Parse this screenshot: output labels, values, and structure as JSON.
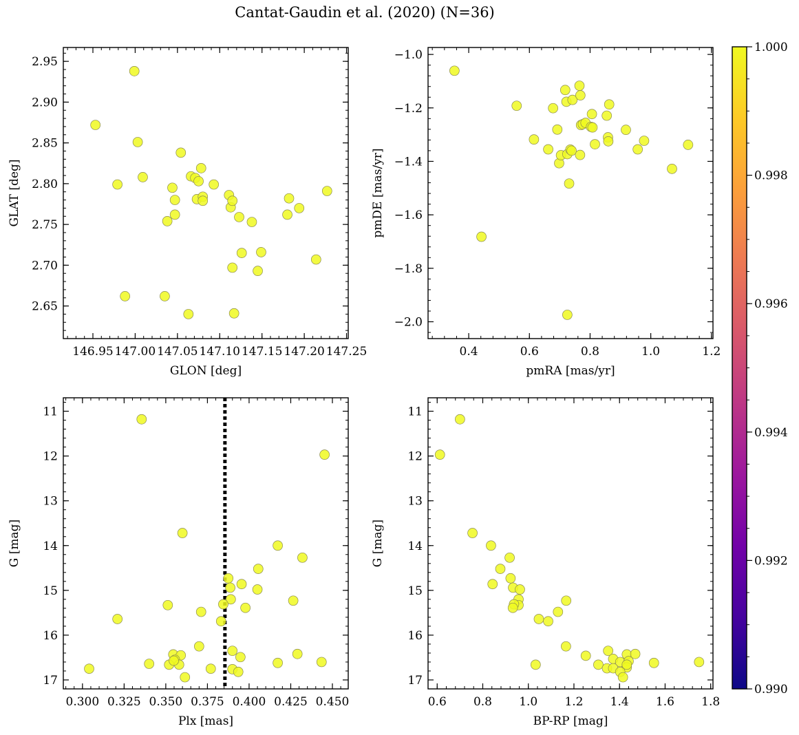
{
  "title": "Cantat-Gaudin et al. (2020) (N=36)",
  "chart_data": [
    {
      "type": "scatter",
      "panel": "top-left",
      "xlabel": "GLON [deg]",
      "ylabel": "GLAT [deg]",
      "xlim": [
        146.915,
        147.252
      ],
      "ylim": [
        2.61,
        2.967
      ],
      "xticks": [
        146.95,
        147.0,
        147.05,
        147.1,
        147.15,
        147.2,
        147.25
      ],
      "xtick_labels": [
        "146.95",
        "147.00",
        "147.05",
        "147.10",
        "147.15",
        "147.20",
        "147.25"
      ],
      "yticks": [
        2.65,
        2.7,
        2.75,
        2.8,
        2.85,
        2.9,
        2.95
      ],
      "ytick_labels": [
        "2.65",
        "2.70",
        "2.75",
        "2.80",
        "2.85",
        "2.90",
        "2.95"
      ],
      "marker_color": "#f0f921",
      "points": [
        {
          "x": 146.953,
          "y": 2.872
        },
        {
          "x": 146.979,
          "y": 2.799
        },
        {
          "x": 146.999,
          "y": 2.938
        },
        {
          "x": 147.003,
          "y": 2.851
        },
        {
          "x": 147.009,
          "y": 2.808
        },
        {
          "x": 146.988,
          "y": 2.662
        },
        {
          "x": 147.035,
          "y": 2.662
        },
        {
          "x": 147.038,
          "y": 2.754
        },
        {
          "x": 147.044,
          "y": 2.795
        },
        {
          "x": 147.047,
          "y": 2.78
        },
        {
          "x": 147.047,
          "y": 2.762
        },
        {
          "x": 147.054,
          "y": 2.838
        },
        {
          "x": 147.063,
          "y": 2.64
        },
        {
          "x": 147.066,
          "y": 2.809
        },
        {
          "x": 147.071,
          "y": 2.807
        },
        {
          "x": 147.075,
          "y": 2.803
        },
        {
          "x": 147.073,
          "y": 2.781
        },
        {
          "x": 147.078,
          "y": 2.819
        },
        {
          "x": 147.08,
          "y": 2.784
        },
        {
          "x": 147.08,
          "y": 2.779
        },
        {
          "x": 147.093,
          "y": 2.799
        },
        {
          "x": 147.111,
          "y": 2.786
        },
        {
          "x": 147.113,
          "y": 2.771
        },
        {
          "x": 147.115,
          "y": 2.779
        },
        {
          "x": 147.115,
          "y": 2.697
        },
        {
          "x": 147.117,
          "y": 2.641
        },
        {
          "x": 147.123,
          "y": 2.759
        },
        {
          "x": 147.126,
          "y": 2.715
        },
        {
          "x": 147.138,
          "y": 2.753
        },
        {
          "x": 147.145,
          "y": 2.693
        },
        {
          "x": 147.149,
          "y": 2.716
        },
        {
          "x": 147.18,
          "y": 2.762
        },
        {
          "x": 147.182,
          "y": 2.782
        },
        {
          "x": 147.194,
          "y": 2.77
        },
        {
          "x": 147.214,
          "y": 2.707
        },
        {
          "x": 147.227,
          "y": 2.791
        }
      ]
    },
    {
      "type": "scatter",
      "panel": "top-right",
      "xlabel": "pmRA [mas/yr]",
      "ylabel": "pmDE [mas/yr]",
      "xlim": [
        0.266,
        1.205
      ],
      "ylim": [
        -2.063,
        -0.974
      ],
      "xticks": [
        0.4,
        0.6,
        0.8,
        1.0,
        1.2
      ],
      "xtick_labels": [
        "0.4",
        "0.6",
        "0.8",
        "1.0",
        "1.2"
      ],
      "yticks": [
        -2.0,
        -1.8,
        -1.6,
        -1.4,
        -1.2,
        -1.0
      ],
      "ytick_labels": [
        "−2.0",
        "−1.8",
        "−1.6",
        "−1.4",
        "−1.2",
        "−1.0"
      ],
      "marker_color": "#f0f921",
      "points": [
        {
          "x": 0.353,
          "y": -1.061
        },
        {
          "x": 0.442,
          "y": -1.682
        },
        {
          "x": 0.558,
          "y": -1.192
        },
        {
          "x": 0.615,
          "y": -1.318
        },
        {
          "x": 0.662,
          "y": -1.355
        },
        {
          "x": 0.678,
          "y": -1.201
        },
        {
          "x": 0.692,
          "y": -1.281
        },
        {
          "x": 0.698,
          "y": -1.407
        },
        {
          "x": 0.704,
          "y": -1.377
        },
        {
          "x": 0.718,
          "y": -1.133
        },
        {
          "x": 0.722,
          "y": -1.177
        },
        {
          "x": 0.725,
          "y": -1.373
        },
        {
          "x": 0.731,
          "y": -1.483
        },
        {
          "x": 0.735,
          "y": -1.356
        },
        {
          "x": 0.739,
          "y": -1.36
        },
        {
          "x": 0.742,
          "y": -1.17
        },
        {
          "x": 0.765,
          "y": -1.117
        },
        {
          "x": 0.768,
          "y": -1.153
        },
        {
          "x": 0.767,
          "y": -1.376
        },
        {
          "x": 0.77,
          "y": -1.264
        },
        {
          "x": 0.776,
          "y": -1.261
        },
        {
          "x": 0.785,
          "y": -1.256
        },
        {
          "x": 0.803,
          "y": -1.271
        },
        {
          "x": 0.806,
          "y": -1.223
        },
        {
          "x": 0.808,
          "y": -1.273
        },
        {
          "x": 0.816,
          "y": -1.336
        },
        {
          "x": 0.855,
          "y": -1.229
        },
        {
          "x": 0.859,
          "y": -1.31
        },
        {
          "x": 0.86,
          "y": -1.325
        },
        {
          "x": 0.863,
          "y": -1.187
        },
        {
          "x": 0.918,
          "y": -1.282
        },
        {
          "x": 0.957,
          "y": -1.355
        },
        {
          "x": 0.978,
          "y": -1.323
        },
        {
          "x": 1.07,
          "y": -1.428
        },
        {
          "x": 1.123,
          "y": -1.338
        },
        {
          "x": 0.725,
          "y": -1.974
        }
      ]
    },
    {
      "type": "scatter",
      "panel": "bottom-left",
      "xlabel": "Plx [mas]",
      "ylabel": "G [mag]",
      "xlim": [
        0.2885,
        0.4595
      ],
      "ylim": [
        17.2,
        10.7
      ],
      "y_inverted": true,
      "vline": {
        "x": 0.3855,
        "style": "dotted",
        "color": "#000000"
      },
      "xticks": [
        0.3,
        0.325,
        0.35,
        0.375,
        0.4,
        0.425,
        0.45
      ],
      "xtick_labels": [
        "0.300",
        "0.325",
        "0.350",
        "0.375",
        "0.400",
        "0.425",
        "0.450"
      ],
      "yticks": [
        11,
        12,
        13,
        14,
        15,
        16,
        17
      ],
      "ytick_labels": [
        "11",
        "12",
        "13",
        "14",
        "15",
        "16",
        "17"
      ],
      "marker_color": "#f0f921",
      "points": [
        {
          "x": 0.3355,
          "y": 11.18
        },
        {
          "x": 0.4453,
          "y": 11.97
        },
        {
          "x": 0.36,
          "y": 13.72
        },
        {
          "x": 0.4172,
          "y": 14.0
        },
        {
          "x": 0.432,
          "y": 14.27
        },
        {
          "x": 0.4055,
          "y": 14.52
        },
        {
          "x": 0.3875,
          "y": 14.73
        },
        {
          "x": 0.3887,
          "y": 14.94
        },
        {
          "x": 0.3955,
          "y": 14.86
        },
        {
          "x": 0.405,
          "y": 14.98
        },
        {
          "x": 0.389,
          "y": 15.2
        },
        {
          "x": 0.3845,
          "y": 15.31
        },
        {
          "x": 0.4265,
          "y": 15.23
        },
        {
          "x": 0.3512,
          "y": 15.33
        },
        {
          "x": 0.3978,
          "y": 15.39
        },
        {
          "x": 0.3712,
          "y": 15.48
        },
        {
          "x": 0.3832,
          "y": 15.69
        },
        {
          "x": 0.321,
          "y": 15.64
        },
        {
          "x": 0.37,
          "y": 16.25
        },
        {
          "x": 0.39,
          "y": 16.35
        },
        {
          "x": 0.3545,
          "y": 16.43
        },
        {
          "x": 0.359,
          "y": 16.45
        },
        {
          "x": 0.3948,
          "y": 16.49
        },
        {
          "x": 0.429,
          "y": 16.42
        },
        {
          "x": 0.3555,
          "y": 16.55
        },
        {
          "x": 0.352,
          "y": 16.66
        },
        {
          "x": 0.358,
          "y": 16.66
        },
        {
          "x": 0.34,
          "y": 16.64
        },
        {
          "x": 0.4172,
          "y": 16.62
        },
        {
          "x": 0.4435,
          "y": 16.6
        },
        {
          "x": 0.304,
          "y": 16.75
        },
        {
          "x": 0.377,
          "y": 16.75
        },
        {
          "x": 0.39,
          "y": 16.76
        },
        {
          "x": 0.3935,
          "y": 16.82
        },
        {
          "x": 0.3615,
          "y": 16.94
        },
        {
          "x": 0.3548,
          "y": 16.57
        }
      ]
    },
    {
      "type": "scatter",
      "panel": "bottom-right",
      "xlabel": "BP-RP [mag]",
      "ylabel": "G [mag]",
      "xlim": [
        0.56,
        1.81
      ],
      "ylim": [
        17.2,
        10.7
      ],
      "y_inverted": true,
      "xticks": [
        0.6,
        0.8,
        1.0,
        1.2,
        1.4,
        1.6,
        1.8
      ],
      "xtick_labels": [
        "0.6",
        "0.8",
        "1.0",
        "1.2",
        "1.4",
        "1.6",
        "1.8"
      ],
      "yticks": [
        11,
        12,
        13,
        14,
        15,
        16,
        17
      ],
      "ytick_labels": [
        "11",
        "12",
        "13",
        "14",
        "15",
        "16",
        "17"
      ],
      "marker_color": "#f0f921",
      "points": [
        {
          "x": 0.612,
          "y": 11.97
        },
        {
          "x": 0.7,
          "y": 11.18
        },
        {
          "x": 0.755,
          "y": 13.72
        },
        {
          "x": 0.836,
          "y": 14.0
        },
        {
          "x": 0.918,
          "y": 14.27
        },
        {
          "x": 0.877,
          "y": 14.52
        },
        {
          "x": 0.922,
          "y": 14.73
        },
        {
          "x": 0.843,
          "y": 14.86
        },
        {
          "x": 0.933,
          "y": 14.94
        },
        {
          "x": 0.963,
          "y": 14.98
        },
        {
          "x": 0.957,
          "y": 15.2
        },
        {
          "x": 0.957,
          "y": 15.33
        },
        {
          "x": 0.937,
          "y": 15.31
        },
        {
          "x": 0.932,
          "y": 15.39
        },
        {
          "x": 1.166,
          "y": 15.23
        },
        {
          "x": 1.13,
          "y": 15.48
        },
        {
          "x": 1.046,
          "y": 15.64
        },
        {
          "x": 1.087,
          "y": 15.69
        },
        {
          "x": 1.165,
          "y": 16.25
        },
        {
          "x": 1.252,
          "y": 16.46
        },
        {
          "x": 1.35,
          "y": 16.35
        },
        {
          "x": 1.432,
          "y": 16.43
        },
        {
          "x": 1.469,
          "y": 16.42
        },
        {
          "x": 1.372,
          "y": 16.53
        },
        {
          "x": 1.403,
          "y": 16.6
        },
        {
          "x": 1.44,
          "y": 16.58
        },
        {
          "x": 1.551,
          "y": 16.62
        },
        {
          "x": 1.749,
          "y": 16.6
        },
        {
          "x": 1.307,
          "y": 16.66
        },
        {
          "x": 1.032,
          "y": 16.66
        },
        {
          "x": 1.345,
          "y": 16.74
        },
        {
          "x": 1.372,
          "y": 16.74
        },
        {
          "x": 1.432,
          "y": 16.72
        },
        {
          "x": 1.403,
          "y": 16.82
        },
        {
          "x": 1.415,
          "y": 16.94
        },
        {
          "x": 1.432,
          "y": 16.66
        }
      ]
    }
  ],
  "colorbar": {
    "min": 0.99,
    "max": 1.0,
    "ticks": [
      0.99,
      0.992,
      0.994,
      0.996,
      0.998,
      1.0
    ],
    "tick_labels": [
      "0.990",
      "0.992",
      "0.994",
      "0.996",
      "0.998",
      "1.000"
    ],
    "colormap": "plasma",
    "stops": [
      "#0d0887",
      "#46039f",
      "#7201a8",
      "#9c179e",
      "#bd3786",
      "#d8576b",
      "#ed7953",
      "#fb9f3a",
      "#fdca26",
      "#f0f921"
    ]
  }
}
